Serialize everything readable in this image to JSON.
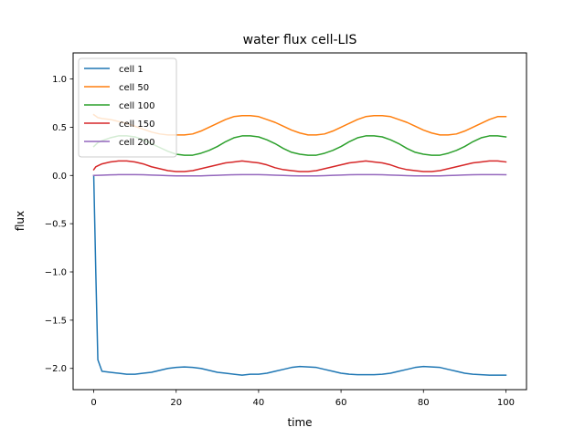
{
  "chart_data": {
    "type": "line",
    "title": "water flux cell-LIS",
    "xlabel": "time",
    "ylabel": "flux",
    "xlim": [
      -5,
      105
    ],
    "ylim": [
      -2.22,
      1.27
    ],
    "x_ticks": [
      0,
      20,
      40,
      60,
      80,
      100
    ],
    "y_ticks": [
      -2.0,
      -1.5,
      -1.0,
      -0.5,
      0.0,
      0.5,
      1.0
    ],
    "x_tick_labels": [
      "0",
      "20",
      "40",
      "60",
      "80",
      "100"
    ],
    "y_tick_labels": [
      "−2.0",
      "−1.5",
      "−1.0",
      "−0.5",
      "0.0",
      "0.5",
      "1.0"
    ],
    "grid": false,
    "legend_position": "top-left",
    "series": [
      {
        "name": "cell 1",
        "color": "#1f77b4",
        "x": [
          0,
          0.5,
          1,
          2,
          4,
          6,
          8,
          10,
          12,
          14,
          16,
          18,
          20,
          22,
          24,
          26,
          28,
          30,
          32,
          34,
          36,
          38,
          40,
          42,
          44,
          46,
          48,
          50,
          52,
          54,
          56,
          58,
          60,
          62,
          64,
          66,
          68,
          70,
          72,
          74,
          76,
          78,
          80,
          82,
          84,
          86,
          88,
          90,
          92,
          94,
          96,
          98,
          100
        ],
        "y": [
          0.0,
          -1.0,
          -1.91,
          -2.03,
          -2.04,
          -2.05,
          -2.06,
          -2.06,
          -2.05,
          -2.04,
          -2.02,
          -2.0,
          -1.99,
          -1.985,
          -1.99,
          -2.0,
          -2.02,
          -2.04,
          -2.05,
          -2.06,
          -2.07,
          -2.06,
          -2.06,
          -2.05,
          -2.03,
          -2.01,
          -1.99,
          -1.98,
          -1.985,
          -1.99,
          -2.01,
          -2.03,
          -2.05,
          -2.06,
          -2.065,
          -2.065,
          -2.065,
          -2.06,
          -2.05,
          -2.03,
          -2.01,
          -1.99,
          -1.98,
          -1.985,
          -1.99,
          -2.01,
          -2.03,
          -2.05,
          -2.06,
          -2.065,
          -2.07,
          -2.07,
          -2.07
        ]
      },
      {
        "name": "cell 50",
        "color": "#ff7f0e",
        "x": [
          0,
          1,
          2,
          4,
          6,
          8,
          10,
          12,
          14,
          16,
          18,
          20,
          22,
          24,
          26,
          28,
          30,
          32,
          34,
          36,
          38,
          40,
          42,
          44,
          46,
          48,
          50,
          52,
          54,
          56,
          58,
          60,
          62,
          64,
          66,
          68,
          70,
          72,
          74,
          76,
          78,
          80,
          82,
          84,
          86,
          88,
          90,
          92,
          94,
          96,
          98,
          100
        ],
        "y": [
          0.63,
          0.6,
          0.59,
          0.58,
          0.56,
          0.54,
          0.51,
          0.48,
          0.45,
          0.43,
          0.42,
          0.42,
          0.42,
          0.43,
          0.46,
          0.5,
          0.54,
          0.58,
          0.61,
          0.62,
          0.62,
          0.61,
          0.58,
          0.55,
          0.51,
          0.47,
          0.44,
          0.42,
          0.42,
          0.43,
          0.46,
          0.5,
          0.54,
          0.58,
          0.61,
          0.62,
          0.62,
          0.61,
          0.58,
          0.55,
          0.51,
          0.47,
          0.44,
          0.42,
          0.42,
          0.43,
          0.46,
          0.5,
          0.54,
          0.58,
          0.61,
          0.61
        ]
      },
      {
        "name": "cell 100",
        "color": "#2ca02c",
        "x": [
          0,
          1,
          2,
          4,
          6,
          8,
          10,
          12,
          14,
          16,
          18,
          20,
          22,
          24,
          26,
          28,
          30,
          32,
          34,
          36,
          38,
          40,
          42,
          44,
          46,
          48,
          50,
          52,
          54,
          56,
          58,
          60,
          62,
          64,
          66,
          68,
          70,
          72,
          74,
          76,
          78,
          80,
          82,
          84,
          86,
          88,
          90,
          92,
          94,
          96,
          98,
          100
        ],
        "y": [
          0.3,
          0.34,
          0.36,
          0.39,
          0.41,
          0.41,
          0.4,
          0.37,
          0.33,
          0.29,
          0.25,
          0.22,
          0.21,
          0.21,
          0.23,
          0.26,
          0.3,
          0.35,
          0.39,
          0.41,
          0.41,
          0.4,
          0.37,
          0.33,
          0.28,
          0.24,
          0.22,
          0.21,
          0.21,
          0.23,
          0.26,
          0.3,
          0.35,
          0.39,
          0.41,
          0.41,
          0.4,
          0.37,
          0.33,
          0.28,
          0.24,
          0.22,
          0.21,
          0.21,
          0.23,
          0.26,
          0.3,
          0.35,
          0.39,
          0.41,
          0.41,
          0.4
        ]
      },
      {
        "name": "cell 150",
        "color": "#d62728",
        "x": [
          0,
          0.5,
          1,
          2,
          4,
          6,
          8,
          10,
          12,
          14,
          16,
          18,
          20,
          22,
          24,
          26,
          28,
          30,
          32,
          34,
          36,
          38,
          40,
          42,
          44,
          46,
          48,
          50,
          52,
          54,
          56,
          58,
          60,
          62,
          64,
          66,
          68,
          70,
          72,
          74,
          76,
          78,
          80,
          82,
          84,
          86,
          88,
          90,
          92,
          94,
          96,
          98,
          100
        ],
        "y": [
          0.06,
          0.09,
          0.1,
          0.12,
          0.14,
          0.15,
          0.15,
          0.14,
          0.12,
          0.09,
          0.07,
          0.05,
          0.04,
          0.04,
          0.05,
          0.07,
          0.09,
          0.11,
          0.13,
          0.14,
          0.15,
          0.14,
          0.13,
          0.11,
          0.08,
          0.06,
          0.05,
          0.04,
          0.04,
          0.05,
          0.07,
          0.09,
          0.11,
          0.13,
          0.14,
          0.15,
          0.14,
          0.13,
          0.11,
          0.08,
          0.06,
          0.05,
          0.04,
          0.04,
          0.05,
          0.07,
          0.09,
          0.11,
          0.13,
          0.14,
          0.15,
          0.15,
          0.14
        ]
      },
      {
        "name": "cell 200",
        "color": "#9467bd",
        "x": [
          0,
          2,
          4,
          6,
          8,
          10,
          12,
          14,
          16,
          18,
          20,
          22,
          24,
          26,
          28,
          30,
          32,
          34,
          36,
          38,
          40,
          42,
          44,
          46,
          48,
          50,
          52,
          54,
          56,
          58,
          60,
          62,
          64,
          66,
          68,
          70,
          72,
          74,
          76,
          78,
          80,
          82,
          84,
          86,
          88,
          90,
          92,
          94,
          96,
          98,
          100
        ],
        "y": [
          0.0,
          0.003,
          0.006,
          0.008,
          0.009,
          0.009,
          0.007,
          0.004,
          0.001,
          -0.002,
          -0.004,
          -0.005,
          -0.005,
          -0.004,
          -0.001,
          0.002,
          0.005,
          0.007,
          0.009,
          0.009,
          0.008,
          0.006,
          0.003,
          0.0,
          -0.003,
          -0.005,
          -0.005,
          -0.004,
          -0.002,
          0.001,
          0.004,
          0.007,
          0.008,
          0.009,
          0.009,
          0.007,
          0.004,
          0.001,
          -0.002,
          -0.004,
          -0.005,
          -0.005,
          -0.004,
          -0.001,
          0.002,
          0.005,
          0.007,
          0.009,
          0.009,
          0.008,
          0.007
        ]
      }
    ]
  }
}
